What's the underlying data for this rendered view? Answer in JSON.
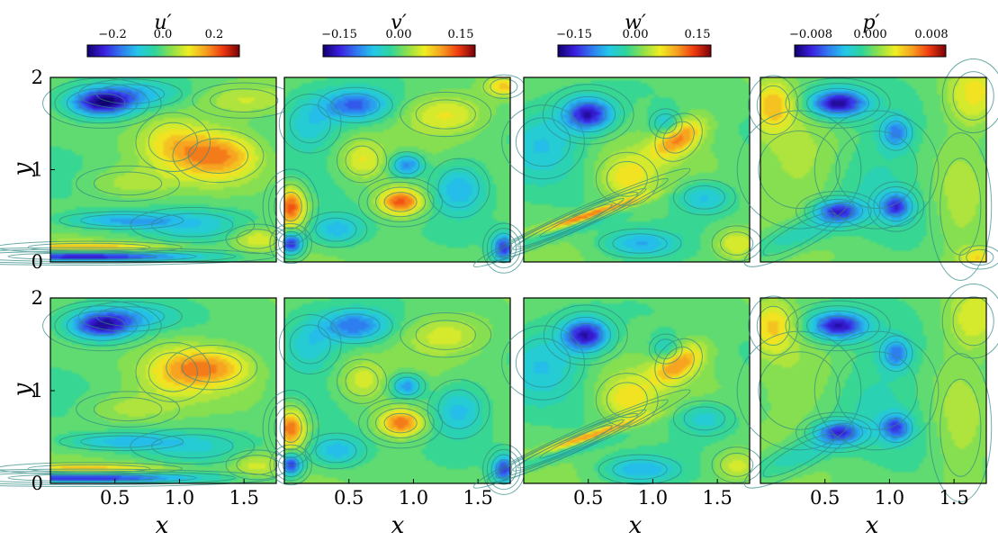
{
  "chart_data": {
    "type": "heatmap",
    "layout": {
      "rows": 2,
      "cols": 4
    },
    "variables": [
      {
        "label": "u",
        "prime": "′",
        "range": [
          -0.3,
          0.3
        ],
        "ticks": [
          "−0.2",
          "0.0",
          "0.2"
        ],
        "tick_values": [
          -0.2,
          0.0,
          0.2
        ]
      },
      {
        "label": "v",
        "prime": "′",
        "range": [
          -0.2,
          0.2
        ],
        "ticks": [
          "−0.15",
          "0.00",
          "0.15"
        ],
        "tick_values": [
          -0.15,
          0.0,
          0.15
        ]
      },
      {
        "label": "w",
        "prime": "′",
        "range": [
          -0.2,
          0.2
        ],
        "ticks": [
          "−0.15",
          "0.00",
          "0.15"
        ],
        "tick_values": [
          -0.15,
          0.0,
          0.15
        ]
      },
      {
        "label": "p",
        "prime": "′",
        "range": [
          -0.01,
          0.01
        ],
        "ticks": [
          "−0.008",
          "0.000",
          "0.008"
        ],
        "tick_values": [
          -0.008,
          0.0,
          0.008
        ]
      }
    ],
    "x_axis": {
      "label": "x",
      "range": [
        0,
        1.75
      ],
      "ticks": [
        "0.5",
        "1.0",
        "1.5"
      ],
      "tick_values": [
        0.5,
        1.0,
        1.5
      ]
    },
    "y_axis": {
      "label": "y",
      "range": [
        0,
        2
      ],
      "ticks": [
        "0",
        "1",
        "2"
      ],
      "tick_values": [
        0,
        1,
        2
      ]
    },
    "colormap": "jet",
    "colormap_stops": [
      "#10006f",
      "#3b1fe0",
      "#2f7af0",
      "#23c8e8",
      "#2ed59a",
      "#8fe04a",
      "#f0ee22",
      "#f7a020",
      "#f03a10",
      "#7a0008"
    ],
    "contour_line_color": "#2f8a86",
    "features": [
      [
        [
          [
            0.4,
            1.72,
            0.17,
            0.1,
            -0.85
          ],
          [
            0.62,
            1.82,
            0.25,
            0.1,
            -0.35
          ],
          [
            0.55,
            0.45,
            0.3,
            0.06,
            -0.4
          ],
          [
            0.25,
            0.06,
            0.55,
            0.035,
            -0.95
          ],
          [
            0.3,
            0.16,
            0.45,
            0.04,
            0.45
          ],
          [
            1.3,
            1.15,
            0.22,
            0.18,
            0.55
          ],
          [
            0.95,
            1.3,
            0.18,
            0.2,
            0.3
          ],
          [
            1.1,
            0.4,
            0.3,
            0.12,
            -0.25
          ],
          [
            0.6,
            0.85,
            0.25,
            0.12,
            0.2
          ],
          [
            1.6,
            0.25,
            0.15,
            0.1,
            0.35
          ],
          [
            1.5,
            1.75,
            0.25,
            0.12,
            0.25
          ]
        ],
        [
          [
            0.4,
            1.7,
            0.17,
            0.1,
            -0.8
          ],
          [
            0.62,
            1.8,
            0.25,
            0.1,
            -0.3
          ],
          [
            0.55,
            0.45,
            0.3,
            0.06,
            -0.35
          ],
          [
            0.25,
            0.06,
            0.55,
            0.035,
            -0.9
          ],
          [
            0.3,
            0.16,
            0.45,
            0.04,
            0.4
          ],
          [
            1.25,
            1.25,
            0.22,
            0.15,
            0.5
          ],
          [
            0.95,
            1.2,
            0.18,
            0.2,
            0.25
          ],
          [
            1.1,
            0.4,
            0.3,
            0.12,
            -0.2
          ],
          [
            0.6,
            0.8,
            0.25,
            0.12,
            0.2
          ],
          [
            1.6,
            0.2,
            0.15,
            0.1,
            0.3
          ]
        ]
      ],
      [
        [
          [
            0.05,
            0.6,
            0.08,
            0.15,
            0.75
          ],
          [
            0.05,
            0.2,
            0.06,
            0.08,
            -0.85
          ],
          [
            0.55,
            1.7,
            0.18,
            0.12,
            -0.6
          ],
          [
            0.95,
            1.05,
            0.09,
            0.09,
            -0.6
          ],
          [
            0.9,
            0.65,
            0.12,
            0.1,
            0.75
          ],
          [
            0.4,
            0.35,
            0.15,
            0.12,
            -0.4
          ],
          [
            1.35,
            0.8,
            0.15,
            0.2,
            -0.45
          ],
          [
            1.25,
            1.6,
            0.22,
            0.15,
            0.35
          ],
          [
            0.2,
            1.5,
            0.15,
            0.2,
            -0.3
          ],
          [
            1.7,
            0.15,
            0.06,
            0.1,
            -0.75
          ],
          [
            1.7,
            1.9,
            0.1,
            0.08,
            0.4
          ],
          [
            0.6,
            1.1,
            0.12,
            0.15,
            0.3
          ]
        ],
        [
          [
            0.05,
            0.6,
            0.08,
            0.15,
            0.7
          ],
          [
            0.05,
            0.2,
            0.06,
            0.08,
            -0.8
          ],
          [
            0.55,
            1.7,
            0.18,
            0.12,
            -0.55
          ],
          [
            0.95,
            1.05,
            0.09,
            0.09,
            -0.55
          ],
          [
            0.9,
            0.65,
            0.12,
            0.1,
            0.7
          ],
          [
            0.4,
            0.35,
            0.15,
            0.12,
            -0.4
          ],
          [
            1.35,
            0.8,
            0.15,
            0.2,
            -0.4
          ],
          [
            1.25,
            1.6,
            0.22,
            0.15,
            0.3
          ],
          [
            0.2,
            1.5,
            0.15,
            0.2,
            -0.3
          ],
          [
            1.7,
            0.15,
            0.06,
            0.1,
            -0.7
          ],
          [
            0.6,
            1.1,
            0.12,
            0.15,
            0.25
          ]
        ]
      ],
      [
        [
          [
            0.45,
            0.48,
            0.34,
            0.04,
            1.0,
            0.42
          ],
          [
            0.3,
            0.38,
            0.4,
            0.06,
            -0.45,
            0.42
          ],
          [
            0.5,
            1.6,
            0.13,
            0.12,
            -0.85
          ],
          [
            1.2,
            1.35,
            0.1,
            0.18,
            0.6,
            -0.75
          ],
          [
            1.1,
            1.5,
            0.08,
            0.1,
            -0.35
          ],
          [
            0.8,
            0.9,
            0.15,
            0.18,
            0.35
          ],
          [
            0.9,
            0.2,
            0.2,
            0.1,
            -0.4
          ],
          [
            1.4,
            0.7,
            0.15,
            0.12,
            -0.35
          ],
          [
            0.15,
            1.3,
            0.2,
            0.25,
            -0.3
          ],
          [
            1.65,
            0.2,
            0.12,
            0.12,
            0.35
          ]
        ],
        [
          [
            0.45,
            0.48,
            0.34,
            0.04,
            0.95,
            0.42
          ],
          [
            0.3,
            0.38,
            0.4,
            0.06,
            -0.45,
            0.42
          ],
          [
            0.48,
            1.6,
            0.12,
            0.12,
            -0.85
          ],
          [
            1.2,
            1.3,
            0.1,
            0.18,
            0.55,
            -0.75
          ],
          [
            1.1,
            1.45,
            0.08,
            0.1,
            -0.3
          ],
          [
            0.8,
            0.9,
            0.15,
            0.18,
            0.35
          ],
          [
            0.9,
            0.15,
            0.2,
            0.1,
            -0.4
          ],
          [
            1.4,
            0.7,
            0.15,
            0.12,
            -0.3
          ],
          [
            0.15,
            1.3,
            0.2,
            0.25,
            -0.3
          ],
          [
            1.65,
            0.2,
            0.12,
            0.12,
            0.3
          ]
        ]
      ],
      [
        [
          [
            0.6,
            1.72,
            0.15,
            0.1,
            -0.9
          ],
          [
            0.6,
            0.55,
            0.12,
            0.08,
            -0.7
          ],
          [
            1.05,
            0.6,
            0.08,
            0.1,
            -0.65
          ],
          [
            1.05,
            1.4,
            0.08,
            0.12,
            -0.5
          ],
          [
            0.3,
            0.3,
            0.3,
            0.1,
            -0.3,
            0.5
          ],
          [
            0.1,
            1.7,
            0.12,
            0.2,
            0.45
          ],
          [
            1.65,
            1.8,
            0.15,
            0.25,
            0.35
          ],
          [
            1.7,
            0.05,
            0.1,
            0.08,
            0.35
          ],
          [
            0.9,
            1.0,
            0.3,
            0.4,
            -0.25
          ],
          [
            0.3,
            1.0,
            0.3,
            0.4,
            0.25
          ],
          [
            1.55,
            0.6,
            0.15,
            0.5,
            0.2
          ]
        ],
        [
          [
            0.6,
            1.7,
            0.15,
            0.1,
            -0.85
          ],
          [
            0.6,
            0.55,
            0.12,
            0.08,
            -0.65
          ],
          [
            1.05,
            0.6,
            0.08,
            0.1,
            -0.6
          ],
          [
            1.05,
            1.4,
            0.08,
            0.12,
            -0.5
          ],
          [
            0.3,
            0.3,
            0.3,
            0.1,
            -0.3,
            0.5
          ],
          [
            0.1,
            1.7,
            0.12,
            0.2,
            0.4
          ],
          [
            1.65,
            1.75,
            0.15,
            0.25,
            0.3
          ],
          [
            0.9,
            1.0,
            0.3,
            0.4,
            -0.25
          ],
          [
            0.3,
            1.0,
            0.3,
            0.4,
            0.2
          ],
          [
            1.55,
            0.6,
            0.15,
            0.5,
            0.2
          ]
        ]
      ]
    ]
  }
}
